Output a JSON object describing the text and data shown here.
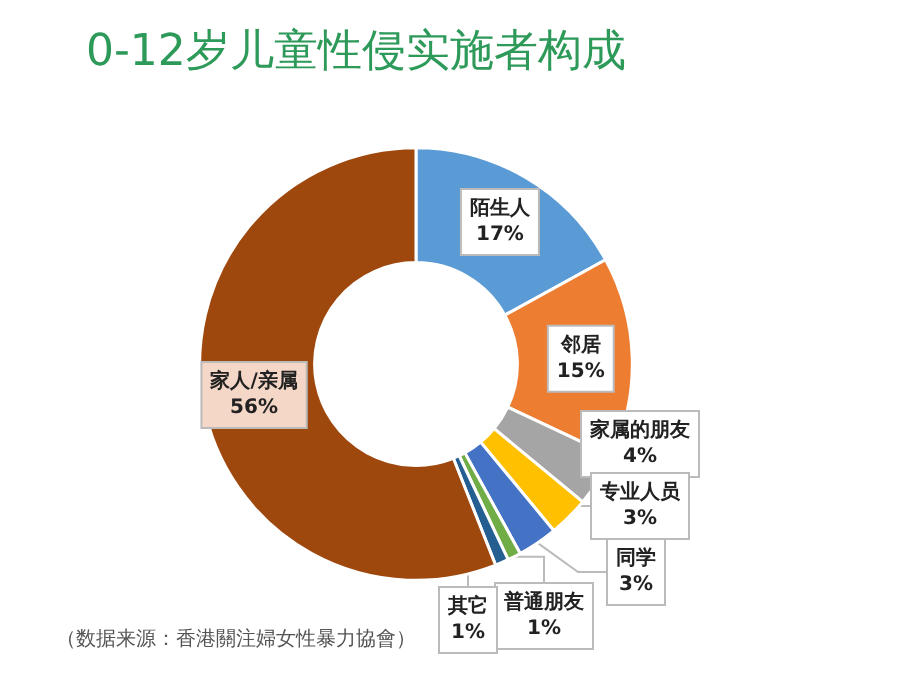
{
  "chart_data": {
    "type": "donut",
    "title": "0-12岁儿童性侵实施者构成",
    "categories": [
      "陌生人",
      "邻居",
      "家属的朋友",
      "专业人员",
      "同学",
      "普通朋友",
      "其它",
      "家人/亲属"
    ],
    "values": [
      17,
      15,
      4,
      3,
      3,
      1,
      1,
      56
    ],
    "value_labels": [
      "17%",
      "15%",
      "4%",
      "3%",
      "3%",
      "1%",
      "1%",
      "56%"
    ],
    "colors": [
      "#5b9bd5",
      "#ed7d31",
      "#a5a5a5",
      "#ffc000",
      "#4472c4",
      "#70ad47",
      "#255e91",
      "#9e480e"
    ],
    "annotations": [
      "（数据来源：香港關注婦女性暴力協會）"
    ],
    "legend": false
  }
}
